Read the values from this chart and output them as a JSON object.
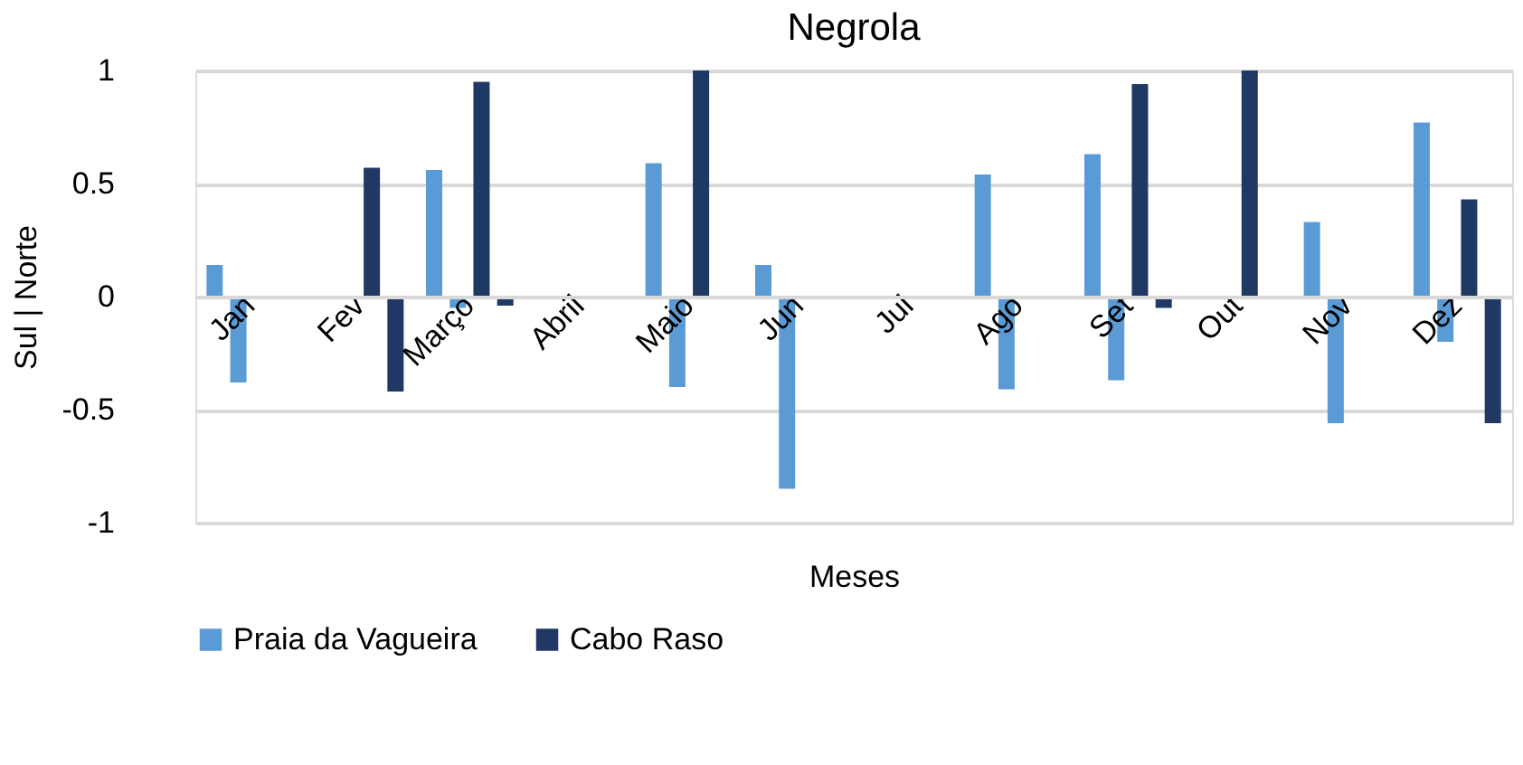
{
  "chart_data": {
    "type": "bar",
    "title": "Negrola",
    "xlabel": "Meses",
    "ylabel": "Sul          |          Norte",
    "categories": [
      "Jan",
      "Fev",
      "Março",
      "Abril",
      "Maio",
      "Jun",
      "Jul",
      "Ago",
      "Set",
      "Out",
      "Nov",
      "Dez"
    ],
    "series": [
      {
        "name": "Praia da Vagueira",
        "color": "#5b9bd5",
        "values": [
          0.14,
          null,
          0.56,
          null,
          0.59,
          0.14,
          null,
          0.54,
          0.63,
          null,
          0.33,
          0.77
        ]
      },
      {
        "color": "#5b9bd5",
        "values": [
          -0.38,
          null,
          -0.05,
          null,
          -0.4,
          -0.85,
          null,
          -0.41,
          -0.37,
          null,
          -0.56,
          -0.2
        ]
      },
      {
        "name": "Cabo Raso",
        "color": "#203864",
        "values": [
          null,
          0.57,
          0.95,
          null,
          1.0,
          null,
          null,
          null,
          0.94,
          1.0,
          null,
          0.43
        ]
      },
      {
        "color": "#203864",
        "values": [
          null,
          -0.42,
          -0.04,
          null,
          null,
          null,
          null,
          null,
          -0.05,
          null,
          null,
          -0.56
        ]
      }
    ],
    "ylim": [
      -1,
      1
    ],
    "yticks": [
      -1,
      -0.5,
      0,
      0.5,
      1
    ],
    "grid": "y",
    "legend": "bottom"
  }
}
